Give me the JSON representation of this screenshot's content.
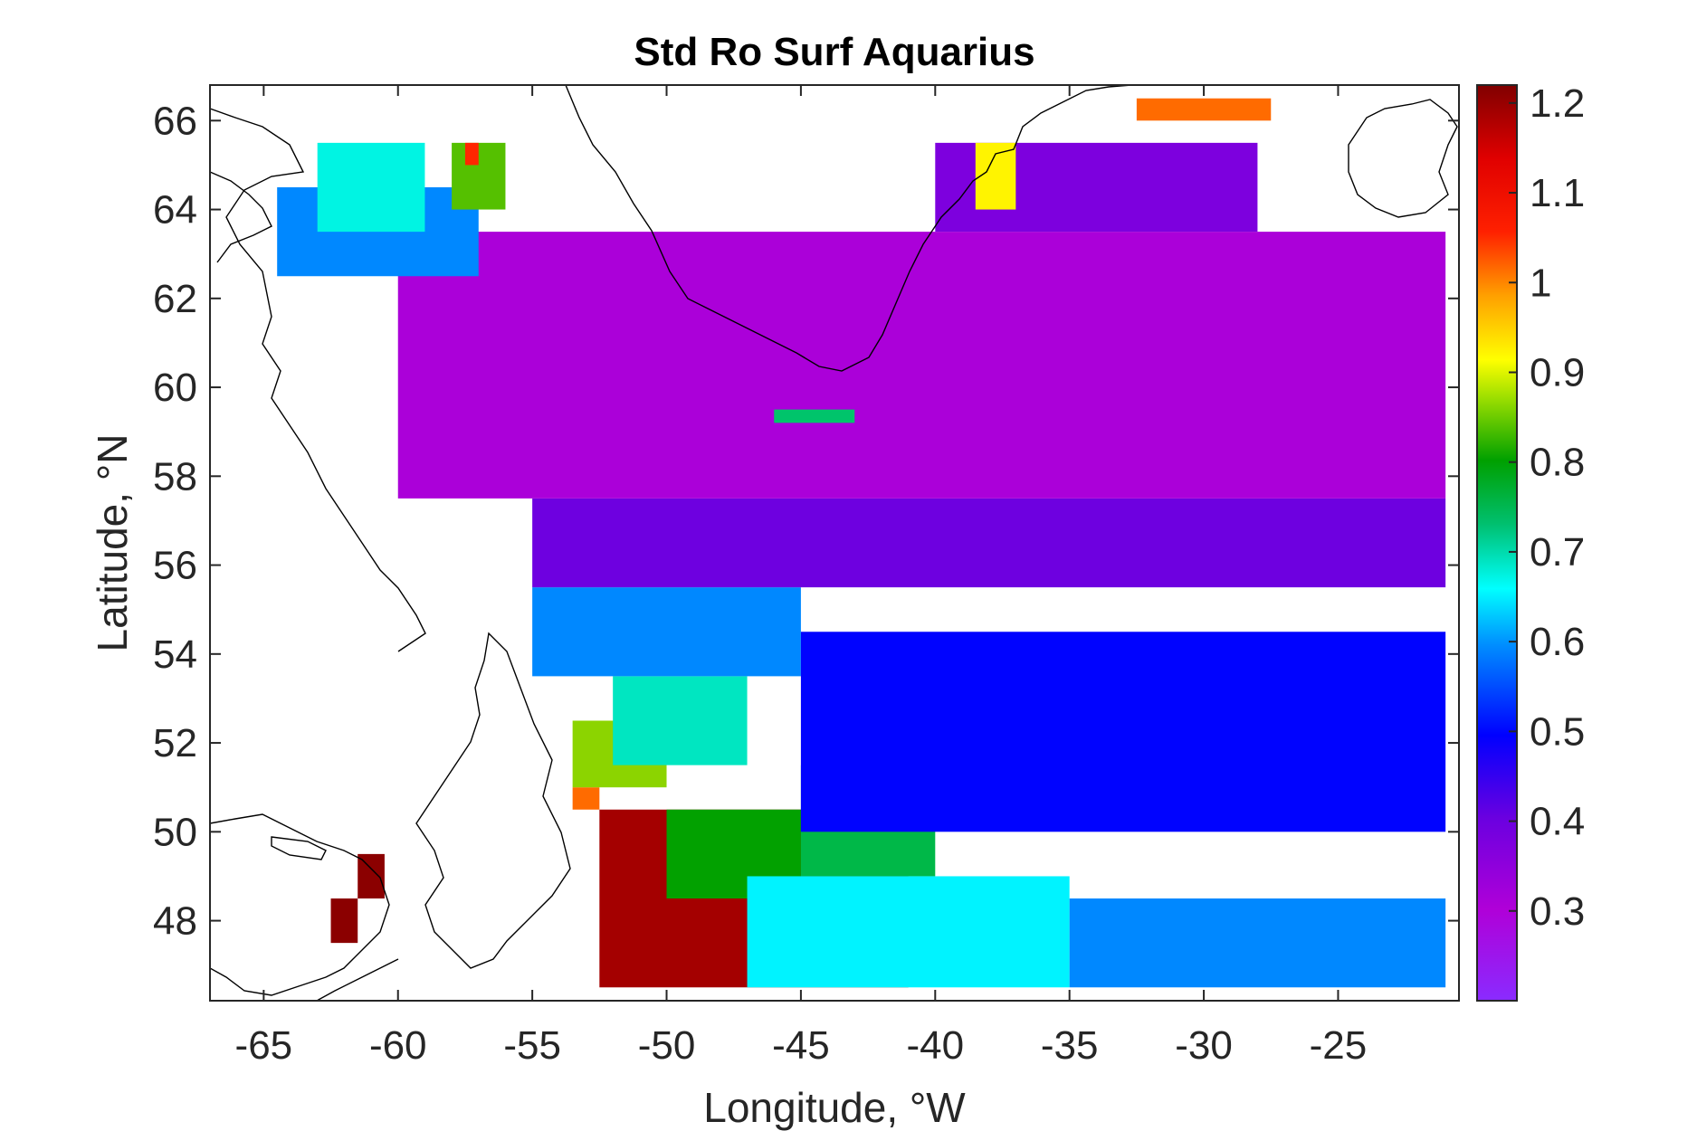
{
  "chart_data": {
    "type": "heatmap",
    "title": "Std Ro Surf Aquarius",
    "xlabel": "Longitude, °W",
    "ylabel": "Latitude, °N",
    "xlim": [
      -67,
      -20.5
    ],
    "ylim": [
      46.2,
      66.8
    ],
    "xticks": [
      -65,
      -60,
      -55,
      -50,
      -45,
      -40,
      -35,
      -30,
      -25
    ],
    "yticks": [
      48,
      50,
      52,
      54,
      56,
      58,
      60,
      62,
      64,
      66
    ],
    "colorbar": {
      "range": [
        0.2,
        1.22
      ],
      "ticks": [
        0.3,
        0.4,
        0.5,
        0.6,
        0.7,
        0.8,
        0.9,
        1,
        1.1,
        1.2
      ],
      "colormap": [
        "#7a1fff",
        "#b000d8",
        "#6a00e0",
        "#0000ff",
        "#00b0ff",
        "#00ffff",
        "#00c060",
        "#00a000",
        "#ffff00",
        "#ff8000",
        "#ff0000",
        "#8b0000"
      ]
    },
    "grid": false,
    "cells": [
      {
        "lon": [
          -52.5,
          -41
        ],
        "lat": [
          46.5,
          50.5
        ],
        "value": 1.2
      },
      {
        "lon": [
          -53.5,
          -52.5
        ],
        "lat": [
          50.5,
          51
        ],
        "value": 1.05
      },
      {
        "lon": [
          -62.5,
          -61.5
        ],
        "lat": [
          47.5,
          48.5
        ],
        "value": 1.22
      },
      {
        "lon": [
          -61.5,
          -60.5
        ],
        "lat": [
          48.5,
          49.5
        ],
        "value": 1.22
      },
      {
        "lon": [
          -53.5,
          -50
        ],
        "lat": [
          51,
          52.5
        ],
        "value": 0.9
      },
      {
        "lon": [
          -50,
          -45
        ],
        "lat": [
          48.5,
          50.5
        ],
        "value": 0.85
      },
      {
        "lon": [
          -45,
          -40
        ],
        "lat": [
          49,
          51.5
        ],
        "value": 0.78
      },
      {
        "lon": [
          -52,
          -47
        ],
        "lat": [
          51.5,
          53.5
        ],
        "value": 0.7
      },
      {
        "lon": [
          -47,
          -35
        ],
        "lat": [
          46.5,
          49
        ],
        "value": 0.65
      },
      {
        "lon": [
          -35,
          -21
        ],
        "lat": [
          46.5,
          48.5
        ],
        "value": 0.55
      },
      {
        "lon": [
          -55,
          -45
        ],
        "lat": [
          53.5,
          55.5
        ],
        "value": 0.55
      },
      {
        "lon": [
          -45,
          -21
        ],
        "lat": [
          50,
          54.5
        ],
        "value": 0.48
      },
      {
        "lon": [
          -55,
          -21
        ],
        "lat": [
          55.5,
          57.5
        ],
        "value": 0.38
      },
      {
        "lon": [
          -60,
          -21
        ],
        "lat": [
          57.5,
          63.5
        ],
        "value": 0.3
      },
      {
        "lon": [
          -40,
          -28
        ],
        "lat": [
          63.5,
          65.5
        ],
        "value": 0.36
      },
      {
        "lon": [
          -64.5,
          -57
        ],
        "lat": [
          62.5,
          64.5
        ],
        "value": 0.55
      },
      {
        "lon": [
          -63,
          -59
        ],
        "lat": [
          63.5,
          65.5
        ],
        "value": 0.68
      },
      {
        "lon": [
          -58,
          -56
        ],
        "lat": [
          64,
          65.5
        ],
        "value": 0.88
      },
      {
        "lon": [
          -57.5,
          -57
        ],
        "lat": [
          65,
          65.5
        ],
        "value": 1.1
      },
      {
        "lon": [
          -32.5,
          -27.5
        ],
        "lat": [
          66,
          66.5
        ],
        "value": 1.05
      },
      {
        "lon": [
          -38.5,
          -37
        ],
        "lat": [
          64,
          65.5
        ],
        "value": 0.95
      },
      {
        "lon": [
          -46,
          -43
        ],
        "lat": [
          59.2,
          59.5
        ],
        "value": 0.75
      }
    ]
  },
  "colors": {
    "land_outline": "#000000",
    "ocean_mask": "#ffffff",
    "axis": "#262626"
  }
}
